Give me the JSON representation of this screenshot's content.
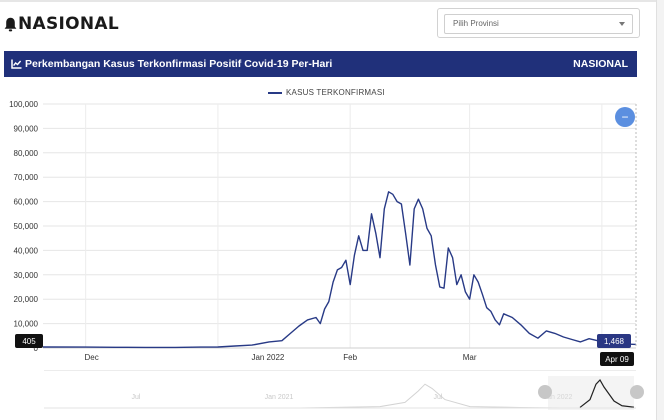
{
  "header": {
    "title": "NASIONAL",
    "region_select": {
      "value": "Pilih Provinsi"
    }
  },
  "panel": {
    "title": "Perkembangan Kasus Terkonfirmasi Positif Covid-19 Per-Hari",
    "scope": "NASIONAL"
  },
  "chart_data": {
    "type": "line",
    "series": [
      {
        "name": "KASUS TERKONFIRMASI",
        "color": "#283a86",
        "points": [
          [
            "2021-11-21",
            405
          ],
          [
            "2021-12-01",
            350
          ],
          [
            "2021-12-08",
            300
          ],
          [
            "2021-12-15",
            250
          ],
          [
            "2021-12-22",
            250
          ],
          [
            "2021-12-28",
            350
          ],
          [
            "2022-01-01",
            400
          ],
          [
            "2022-01-05",
            800
          ],
          [
            "2022-01-09",
            1200
          ],
          [
            "2022-01-13",
            2500
          ],
          [
            "2022-01-16",
            3000
          ],
          [
            "2022-01-18",
            6000
          ],
          [
            "2022-01-20",
            9000
          ],
          [
            "2022-01-22",
            11500
          ],
          [
            "2022-01-24",
            12500
          ],
          [
            "2022-01-25",
            10000
          ],
          [
            "2022-01-26",
            16000
          ],
          [
            "2022-01-27",
            19000
          ],
          [
            "2022-01-28",
            27000
          ],
          [
            "2022-01-29",
            32000
          ],
          [
            "2022-01-30",
            33000
          ],
          [
            "2022-01-31",
            36000
          ],
          [
            "2022-02-01",
            26000
          ],
          [
            "2022-02-02",
            38000
          ],
          [
            "2022-02-03",
            46000
          ],
          [
            "2022-02-04",
            40000
          ],
          [
            "2022-02-05",
            40000
          ],
          [
            "2022-02-06",
            55000
          ],
          [
            "2022-02-07",
            47000
          ],
          [
            "2022-02-08",
            37000
          ],
          [
            "2022-02-09",
            57000
          ],
          [
            "2022-02-10",
            64000
          ],
          [
            "2022-02-11",
            63000
          ],
          [
            "2022-02-12",
            60000
          ],
          [
            "2022-02-13",
            59000
          ],
          [
            "2022-02-14",
            47000
          ],
          [
            "2022-02-15",
            34000
          ],
          [
            "2022-02-16",
            57000
          ],
          [
            "2022-02-17",
            61000
          ],
          [
            "2022-02-18",
            57000
          ],
          [
            "2022-02-19",
            49000
          ],
          [
            "2022-02-20",
            46000
          ],
          [
            "2022-02-21",
            34000
          ],
          [
            "2022-02-22",
            25000
          ],
          [
            "2022-02-23",
            24500
          ],
          [
            "2022-02-24",
            41000
          ],
          [
            "2022-02-25",
            37000
          ],
          [
            "2022-02-26",
            26000
          ],
          [
            "2022-02-27",
            30000
          ],
          [
            "2022-02-28",
            23000
          ],
          [
            "2022-03-01",
            20000
          ],
          [
            "2022-03-02",
            30000
          ],
          [
            "2022-03-03",
            27000
          ],
          [
            "2022-03-04",
            22000
          ],
          [
            "2022-03-05",
            16500
          ],
          [
            "2022-03-06",
            15000
          ],
          [
            "2022-03-07",
            11500
          ],
          [
            "2022-03-08",
            9500
          ],
          [
            "2022-03-09",
            14000
          ],
          [
            "2022-03-11",
            12500
          ],
          [
            "2022-03-13",
            9500
          ],
          [
            "2022-03-15",
            6000
          ],
          [
            "2022-03-17",
            4000
          ],
          [
            "2022-03-19",
            7000
          ],
          [
            "2022-03-21",
            6000
          ],
          [
            "2022-03-23",
            4500
          ],
          [
            "2022-03-25",
            3500
          ],
          [
            "2022-03-27",
            2500
          ],
          [
            "2022-03-29",
            3800
          ],
          [
            "2022-03-31",
            3000
          ],
          [
            "2022-04-02",
            2200
          ],
          [
            "2022-04-04",
            1900
          ],
          [
            "2022-04-06",
            1700
          ],
          [
            "2022-04-09",
            1468
          ]
        ]
      }
    ],
    "xlabel": "",
    "ylabel": "",
    "x_ticks": [
      "Dec",
      "Jan 2022",
      "Feb",
      "Mar"
    ],
    "y_ticks": [
      "0",
      "10,000",
      "20,000",
      "30,000",
      "40,000",
      "50,000",
      "60,000",
      "70,000",
      "80,000",
      "90,000",
      "100,000"
    ],
    "ylim": [
      0,
      100000
    ],
    "xlim": [
      "2021-11-21",
      "2022-04-09"
    ],
    "grid": true,
    "legend": "top-center",
    "flags": {
      "start": "405",
      "current": "1,468",
      "date": "Apr 09"
    },
    "navigator": {
      "labels": [
        "Jul",
        "Jan 2021",
        "Jul",
        "Jan 2022"
      ]
    }
  }
}
